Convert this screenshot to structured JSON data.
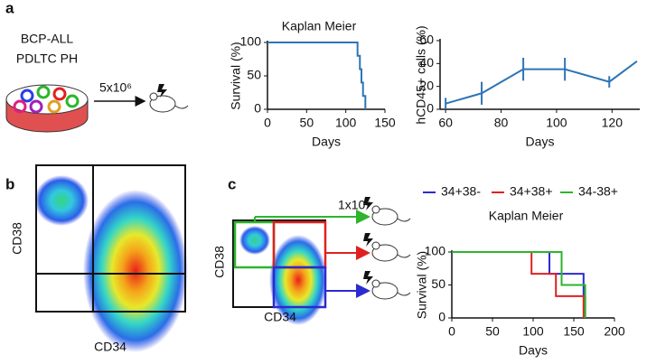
{
  "panel_labels": [
    "a",
    "b",
    "c"
  ],
  "schematic": {
    "cell_line": [
      "BCP-ALL",
      "PDLTC PH"
    ],
    "dose_a": "5x10⁶",
    "dose_c": "1x10⁶"
  },
  "flow": {
    "x_label": "CD34",
    "y_label": "CD38"
  },
  "chart_data": [
    {
      "type": "step",
      "title": "Kaplan Meier",
      "x_label": "Days",
      "y_label": "Survival (%)",
      "color": "#2e75b6",
      "x": [
        0,
        115,
        118,
        120,
        122,
        125
      ],
      "values": [
        100,
        80,
        60,
        40,
        20,
        0
      ],
      "xlim": [
        0,
        150
      ],
      "xticks": [
        0,
        50,
        100,
        150
      ],
      "ylim": [
        0,
        100
      ],
      "yticks": [
        0,
        50,
        100
      ]
    },
    {
      "type": "line",
      "x_label": "Days",
      "y_label": "hCD45+ cells (%)",
      "color": "#2e75b6",
      "x": [
        60,
        73,
        88,
        103,
        119,
        129
      ],
      "values": [
        5,
        14,
        35,
        35,
        24,
        42
      ],
      "errors": [
        5,
        10,
        10,
        10,
        5,
        0
      ],
      "xlim": [
        58,
        130
      ],
      "xticks": [
        60,
        80,
        100,
        120
      ],
      "ylim": [
        0,
        60
      ],
      "yticks": [
        0,
        20,
        40,
        60
      ]
    },
    {
      "type": "step",
      "title": "Kaplan Meier",
      "x_label": "Days",
      "y_label": "Survival (%)",
      "series": [
        {
          "name": "34+38-",
          "color": "#2b2bd0",
          "x": [
            0,
            120,
            162,
            164
          ],
          "values": [
            100,
            67,
            33,
            0
          ]
        },
        {
          "name": "34+38+",
          "color": "#e02020",
          "x": [
            0,
            98,
            128,
            162
          ],
          "values": [
            100,
            67,
            33,
            0
          ]
        },
        {
          "name": "34-38+",
          "color": "#2db52d",
          "x": [
            0,
            135,
            164
          ],
          "values": [
            100,
            50,
            0
          ]
        }
      ],
      "xlim": [
        0,
        200
      ],
      "xticks": [
        0,
        50,
        100,
        150,
        200
      ],
      "ylim": [
        0,
        100
      ],
      "yticks": [
        0,
        50,
        100
      ]
    }
  ]
}
